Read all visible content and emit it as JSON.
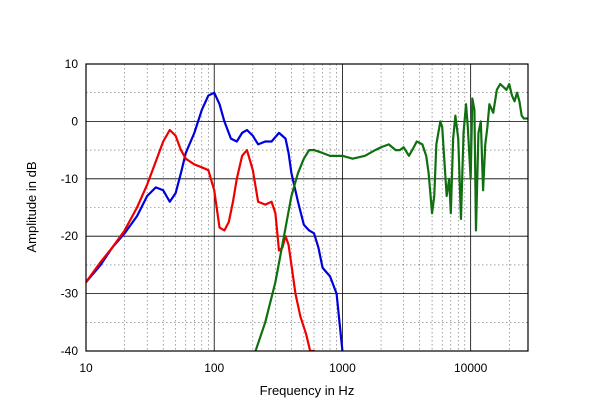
{
  "chart_data": {
    "type": "line",
    "title": "",
    "xlabel": "Frequency  in  Hz",
    "ylabel": "Amplitude in dB",
    "x_scale": "log",
    "xlim": [
      10,
      28000
    ],
    "ylim": [
      -40,
      10
    ],
    "x_ticks": [
      10,
      100,
      1000,
      10000
    ],
    "x_tick_labels": [
      "10",
      "100",
      "1000",
      "10000"
    ],
    "y_ticks": [
      10,
      0,
      -10,
      -20,
      -30,
      -40
    ],
    "y_tick_labels": [
      "10",
      "0",
      "-10",
      "-20",
      "-30",
      "-40"
    ],
    "grid": true,
    "legend": "none",
    "series": [
      {
        "color": "#0000dd",
        "x": [
          10,
          13,
          16,
          20,
          25,
          30,
          35,
          40,
          45,
          50,
          55,
          60,
          70,
          80,
          90,
          100,
          110,
          120,
          135,
          150,
          165,
          180,
          200,
          220,
          250,
          280,
          320,
          360,
          380,
          400,
          450,
          500,
          550,
          600,
          650,
          700,
          800,
          900,
          1000
        ],
        "y": [
          -28,
          -25,
          -22,
          -19.5,
          -16.5,
          -13,
          -11.5,
          -12,
          -14,
          -12.5,
          -9,
          -5.5,
          -2,
          2,
          4.5,
          5,
          3,
          0,
          -3,
          -3.5,
          -2,
          -1.5,
          -2.5,
          -4,
          -3.5,
          -3.5,
          -2,
          -3,
          -5.5,
          -9,
          -14,
          -18,
          -19,
          -19.5,
          -22,
          -25.5,
          -27,
          -30,
          -40
        ]
      },
      {
        "color": "#ee0000",
        "x": [
          10,
          13,
          16,
          20,
          25,
          30,
          35,
          40,
          45,
          50,
          55,
          60,
          70,
          80,
          90,
          100,
          110,
          120,
          130,
          140,
          150,
          165,
          180,
          200,
          220,
          250,
          280,
          300,
          320,
          340,
          360,
          380,
          400,
          430,
          470,
          520,
          560,
          600
        ],
        "y": [
          -28,
          -24.5,
          -22,
          -19,
          -15,
          -11,
          -7,
          -3.5,
          -1.5,
          -2.5,
          -5,
          -6.5,
          -7.5,
          -8,
          -8.5,
          -12,
          -18.5,
          -19,
          -17.5,
          -14,
          -10,
          -6,
          -5,
          -8.5,
          -14,
          -14.5,
          -14,
          -16,
          -22.5,
          -22,
          -20,
          -21.5,
          -25,
          -30,
          -34,
          -37,
          -40,
          -40
        ]
      },
      {
        "color": "#107010",
        "x": [
          210,
          250,
          300,
          350,
          400,
          450,
          500,
          550,
          600,
          700,
          800,
          900,
          1000,
          1200,
          1500,
          1800,
          2000,
          2300,
          2600,
          2800,
          3000,
          3300,
          3500,
          3800,
          4200,
          4500,
          4700,
          5000,
          5200,
          5400,
          5800,
          6000,
          6200,
          6500,
          6800,
          7000,
          7300,
          7600,
          8000,
          8400,
          8800,
          9200,
          9500,
          10000,
          10300,
          10700,
          11000,
          11500,
          12000,
          12500,
          13000,
          13500,
          14000,
          15000,
          16000,
          17000,
          18000,
          19000,
          20000,
          21000,
          22000,
          23000,
          24000,
          25000,
          26000,
          28000
        ],
        "y": [
          -40,
          -35,
          -28,
          -20,
          -13,
          -9,
          -6.5,
          -5,
          -5,
          -5.5,
          -6,
          -6,
          -6,
          -6.5,
          -6,
          -5,
          -4.5,
          -4,
          -5,
          -5,
          -4.5,
          -6,
          -5,
          -3.5,
          -4,
          -6,
          -9,
          -16,
          -13,
          -4,
          0,
          -1,
          -6,
          -13,
          -10,
          -16,
          -3,
          1,
          -3,
          -17,
          -2,
          3,
          -1,
          -10,
          4,
          2,
          -19,
          -2,
          0,
          -12,
          -4,
          -1,
          3,
          1.5,
          5.5,
          6.5,
          6,
          5.5,
          6.5,
          4.5,
          3.5,
          5,
          3.5,
          1,
          0.5,
          0.5
        ]
      }
    ]
  }
}
